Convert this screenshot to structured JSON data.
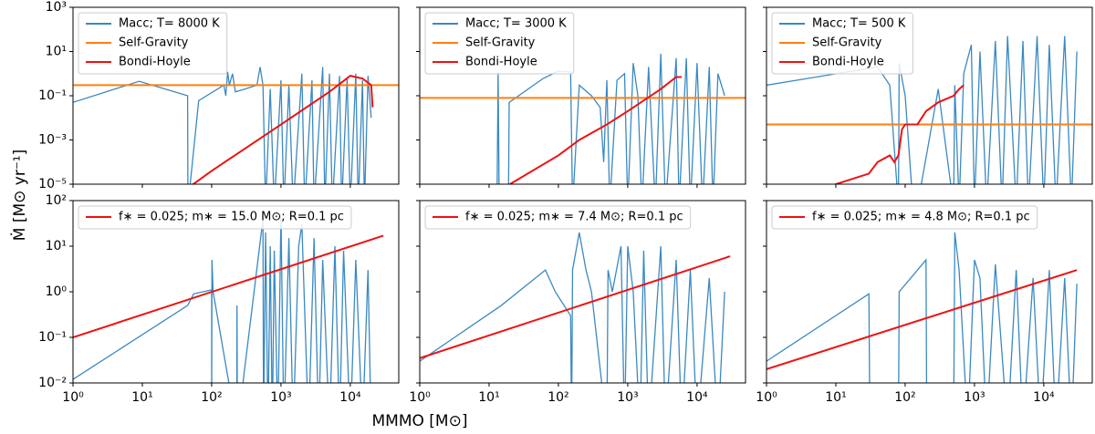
{
  "axes": {
    "x": {
      "scale": "log",
      "lim": [
        1,
        50000
      ],
      "ticks": [
        {
          "value": 1,
          "label": "10⁰"
        },
        {
          "value": 10,
          "label": "10¹"
        },
        {
          "value": 100,
          "label": "10²"
        },
        {
          "value": 1000,
          "label": "10³"
        },
        {
          "value": 10000,
          "label": "10⁴"
        }
      ],
      "label": "MMMO [M⊙]"
    },
    "y_top": {
      "scale": "log",
      "lim": [
        1e-05,
        1000
      ],
      "ticks": [
        {
          "value": 1e-05,
          "label": "10⁻⁵"
        },
        {
          "value": 0.001,
          "label": "10⁻³"
        },
        {
          "value": 0.1,
          "label": "10⁻¹"
        },
        {
          "value": 10,
          "label": "10¹"
        },
        {
          "value": 1000,
          "label": "10³"
        }
      ]
    },
    "y_bottom": {
      "scale": "log",
      "lim": [
        0.01,
        100
      ],
      "ticks": [
        {
          "value": 0.01,
          "label": "10⁻²"
        },
        {
          "value": 0.1,
          "label": "10⁻¹"
        },
        {
          "value": 1,
          "label": "10⁰"
        },
        {
          "value": 10,
          "label": "10¹"
        },
        {
          "value": 100,
          "label": "10²"
        }
      ]
    },
    "y_label": "Ṁ [M⊙ yr⁻¹]"
  },
  "chart_data": [
    {
      "type": "line",
      "series": [
        {
          "name": "Macc; T= 8000 K",
          "color": "#3a89c2",
          "x": [
            1,
            9,
            45,
            45.5,
            65,
            150,
            160,
            170,
            180,
            200,
            220,
            300,
            450,
            500,
            550,
            600,
            700,
            800,
            1000,
            1100,
            1300,
            1500,
            2000,
            2200,
            2800,
            3000,
            4000,
            4300,
            5000,
            5500,
            7000,
            7500,
            9000,
            10000,
            12000,
            13000,
            15000,
            16000,
            18000,
            20000
          ],
          "values": [
            0.05,
            0.45,
            0.1,
            1e-06,
            0.06,
            0.3,
            0.1,
            1.2,
            0.3,
            1,
            0.15,
            0.2,
            0.3,
            2,
            0.3,
            1e-06,
            0.2,
            1e-06,
            0.5,
            1e-06,
            0.3,
            1e-06,
            1,
            1e-06,
            0.5,
            1e-06,
            2,
            1e-06,
            1,
            1e-06,
            0.8,
            1e-06,
            0.6,
            1e-06,
            1,
            1e-06,
            0.5,
            1e-06,
            0.8,
            0.01
          ]
        },
        {
          "name": "Self-Gravity",
          "color": "#ff7f0e",
          "x": [
            1,
            50000
          ],
          "values": [
            0.3,
            0.3
          ]
        },
        {
          "name": "Bondi-Hoyle",
          "color": "#ee1111",
          "x": [
            40,
            100,
            1000,
            5000,
            10000,
            15000,
            20000,
            21000
          ],
          "values": [
            5e-06,
            4e-05,
            0.005,
            0.15,
            0.8,
            0.6,
            0.3,
            0.03
          ]
        }
      ]
    },
    {
      "type": "line",
      "series": [
        {
          "name": "Macc; T= 3000 K",
          "color": "#3a89c2",
          "x": [
            13,
            13.5,
            14,
            19,
            19.5,
            60,
            100,
            150,
            160,
            200,
            300,
            400,
            450,
            500,
            550,
            700,
            900,
            1000,
            1200,
            1400,
            1600,
            2000,
            2500,
            3000,
            3500,
            5000,
            5500,
            7000,
            8000,
            10000,
            12000,
            15000,
            17000,
            20000,
            25000
          ],
          "values": [
            1e-06,
            1.2,
            1e-06,
            1e-06,
            0.05,
            0.6,
            1.3,
            1.2,
            1e-06,
            0.3,
            0.1,
            0.03,
            0.0001,
            0.5,
            1e-06,
            0.5,
            1,
            1e-06,
            3,
            0.1,
            1e-06,
            2,
            1e-06,
            8,
            1e-06,
            5,
            1e-06,
            5,
            1e-06,
            3,
            1e-06,
            2,
            1e-06,
            1,
            0.1
          ]
        },
        {
          "name": "Self-Gravity",
          "color": "#ff7f0e",
          "x": [
            1,
            50000
          ],
          "values": [
            0.08,
            0.08
          ]
        },
        {
          "name": "Bondi-Hoyle",
          "color": "#ee1111",
          "x": [
            20,
            100,
            200,
            500,
            1000,
            3000,
            5000,
            6000
          ],
          "values": [
            1e-05,
            0.0002,
            0.001,
            0.005,
            0.02,
            0.2,
            0.7,
            0.7
          ]
        }
      ]
    },
    {
      "type": "line",
      "series": [
        {
          "name": "Macc; T= 500 K",
          "color": "#3a89c2",
          "x": [
            1,
            40,
            60,
            80,
            82,
            100,
            130,
            150,
            300,
            500,
            520,
            600,
            700,
            900,
            1000,
            1200,
            1500,
            2000,
            2500,
            3000,
            4000,
            5000,
            6000,
            8000,
            10000,
            12000,
            15000,
            20000,
            25000,
            30000
          ],
          "values": [
            0.3,
            2,
            0.3,
            1e-06,
            3,
            0.1,
            1e-06,
            1e-06,
            0.2,
            1e-06,
            0.3,
            1e-06,
            1,
            20,
            1e-06,
            10,
            1e-06,
            30,
            1e-06,
            50,
            1e-06,
            30,
            1e-06,
            50,
            1e-06,
            20,
            1e-06,
            50,
            1e-06,
            10
          ]
        },
        {
          "name": "Self-Gravity",
          "color": "#ff7f0e",
          "x": [
            1,
            50000
          ],
          "values": [
            0.005,
            0.005
          ]
        },
        {
          "name": "Bondi-Hoyle",
          "color": "#ee1111",
          "x": [
            3,
            10,
            30,
            40,
            60,
            70,
            80,
            90,
            100,
            150,
            200,
            300,
            500,
            600,
            700
          ],
          "values": [
            1e-06,
            1e-05,
            3e-05,
            0.0001,
            0.0002,
            0.0001,
            0.0002,
            0.003,
            0.005,
            0.005,
            0.02,
            0.05,
            0.1,
            0.2,
            0.3
          ]
        }
      ]
    },
    {
      "type": "line",
      "series": [
        {
          "name": "",
          "color": "#3a89c2",
          "x": [
            1,
            45,
            55,
            100,
            100,
            101,
            105,
            230,
            232,
            235,
            550,
            560,
            600,
            650,
            700,
            750,
            800,
            900,
            1000,
            1100,
            1300,
            1500,
            1800,
            2000,
            2500,
            3000,
            3500,
            4000,
            5000,
            6000,
            7000,
            8000,
            10000,
            12000,
            15000,
            18000,
            20000
          ],
          "values": [
            0.012,
            0.5,
            0.9,
            1.1,
            0.001,
            5,
            1,
            0.001,
            0.5,
            0.001,
            40,
            0.001,
            20,
            0.001,
            10,
            0.001,
            8,
            0.001,
            50,
            0.001,
            15,
            0.001,
            10,
            30,
            0.001,
            15,
            0.001,
            5,
            0.001,
            10,
            0.001,
            8,
            0.001,
            5,
            0.001,
            3,
            0.001
          ]
        },
        {
          "name": "f∗ = 0.025; m∗ = 15.0 M⊙; R=0.1 pc",
          "color": "#ee1111",
          "x": [
            1,
            30000
          ],
          "values": [
            0.1,
            17
          ]
        }
      ]
    },
    {
      "type": "line",
      "series": [
        {
          "name": "",
          "color": "#3a89c2",
          "x": [
            1,
            15,
            65,
            90,
            150,
            155,
            160,
            200,
            250,
            300,
            500,
            520,
            600,
            800,
            900,
            1000,
            1200,
            1500,
            1700,
            2000,
            3000,
            3500,
            5000,
            6000,
            8000,
            10000,
            15000,
            20000,
            25000
          ],
          "values": [
            0.03,
            0.5,
            3,
            1,
            0.3,
            0.001,
            3,
            20,
            3,
            1,
            0.001,
            3,
            1,
            10,
            0.001,
            10,
            1,
            0.001,
            8,
            0.001,
            10,
            0.001,
            5,
            0.001,
            3,
            0.001,
            2,
            0.001,
            1
          ]
        },
        {
          "name": "f∗ = 0.025; m∗ = 7.4 M⊙; R=0.1 pc",
          "color": "#ee1111",
          "x": [
            1,
            30000
          ],
          "values": [
            0.035,
            6
          ]
        }
      ]
    },
    {
      "type": "line",
      "series": [
        {
          "name": "",
          "color": "#3a89c2",
          "x": [
            1,
            30,
            31,
            80,
            82,
            200,
            205,
            500,
            520,
            600,
            800,
            1000,
            1200,
            1500,
            2000,
            3000,
            4000,
            5000,
            7000,
            9000,
            12000,
            15000,
            20000,
            25000,
            30000
          ],
          "values": [
            0.03,
            0.9,
            0.001,
            0.001,
            1,
            5,
            0.001,
            0.001,
            20,
            3,
            0.001,
            5,
            2,
            0.001,
            4,
            0.001,
            3,
            0.001,
            2,
            0.001,
            3,
            0.001,
            2,
            0.001,
            1.5
          ]
        },
        {
          "name": "f∗ = 0.025; m∗ = 4.8 M⊙; R=0.1 pc",
          "color": "#ee1111",
          "x": [
            1,
            30000
          ],
          "values": [
            0.02,
            3
          ]
        }
      ]
    }
  ]
}
